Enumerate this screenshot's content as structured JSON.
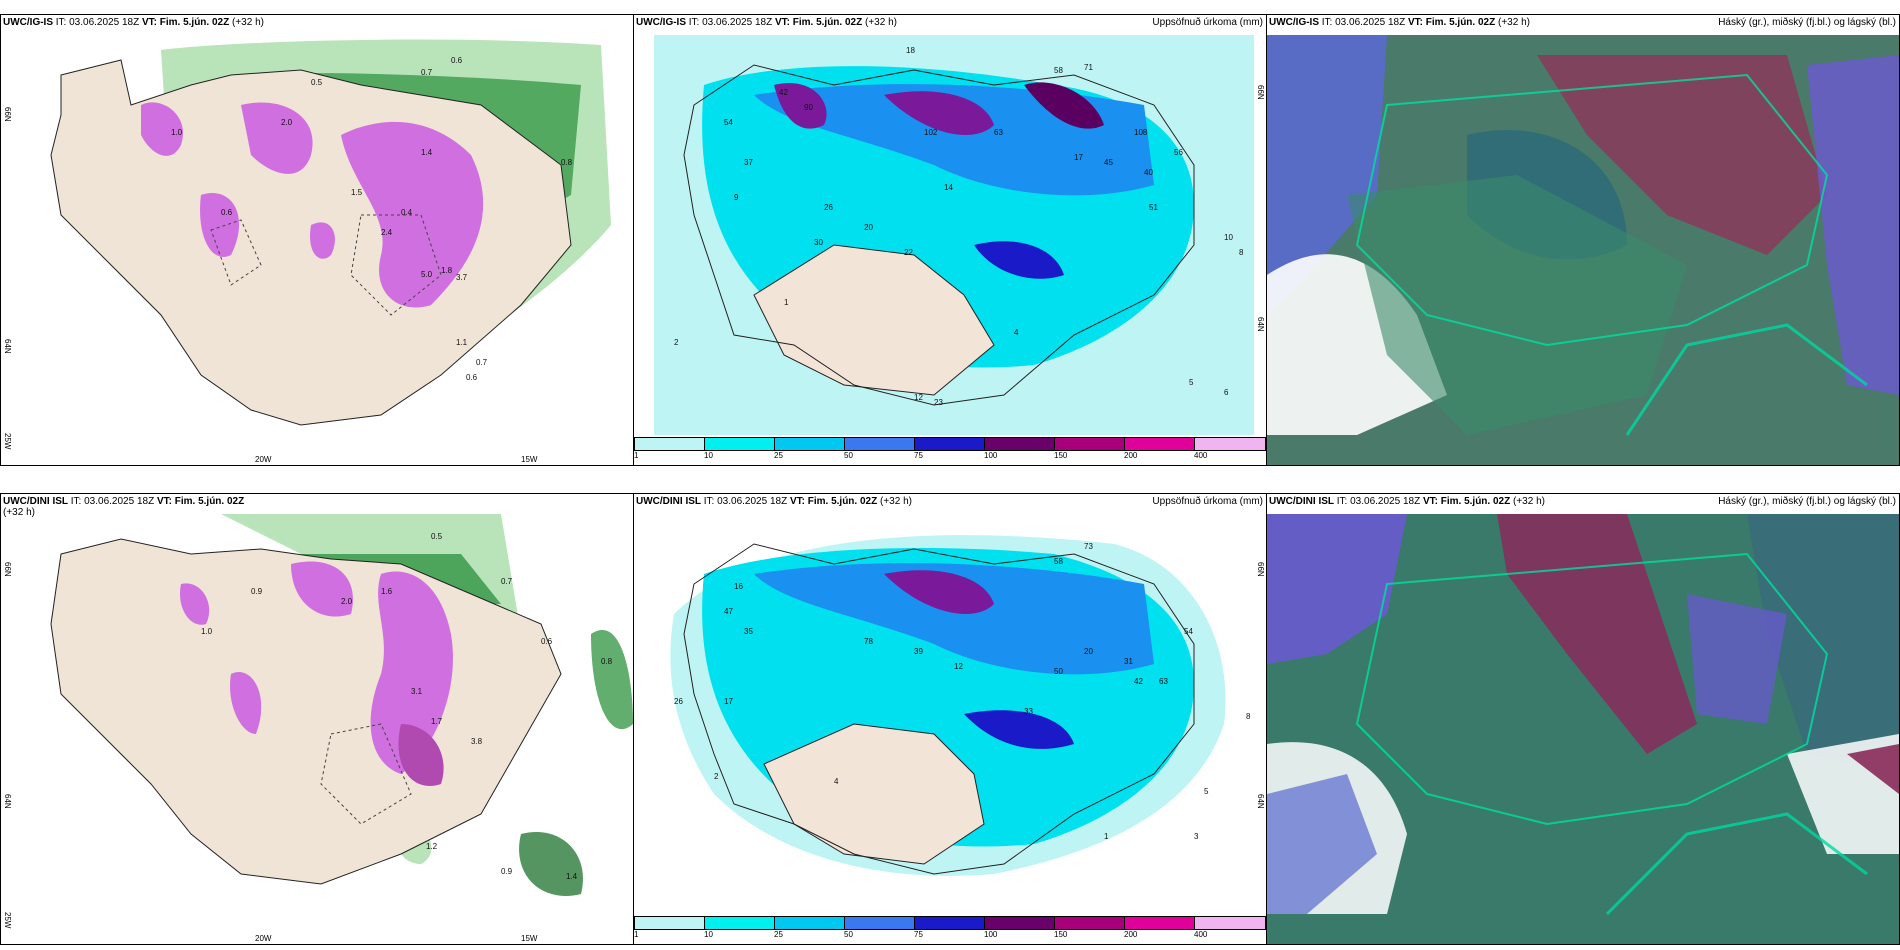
{
  "rows": [
    {
      "id": "ig",
      "left_title": {
        "model": "UWC/IG-IS",
        "it": "IT: 03.06.2025 18Z",
        "vt_label": "VT:",
        "vt_value": "Fim. 5.jún. 02Z",
        "lead": "(+32 h)"
      },
      "mid_title": {
        "model": "UWC/IG-IS",
        "it": "IT: 03.06.2025 18Z",
        "vt_label": "VT:",
        "vt_value": "Fim. 5.jún. 02Z",
        "lead": "(+32 h)",
        "right": "Uppsöfnuð úrkoma (mm)"
      },
      "right_title": {
        "model": "UWC/IG-IS",
        "it": "IT: 03.06.2025 18Z",
        "vt_label": "VT:",
        "vt_value": "Fim. 5.jún. 02Z",
        "lead": "(+32 h)",
        "right": "Háský (gr.), miðský (fj.bl.) og lágský (bl.)"
      },
      "precip_values": [
        "0.7",
        "0.6",
        "0.5",
        "0.8",
        "1.0",
        "2.0",
        "1.4",
        "0.4",
        "1.5",
        "2.4",
        "3.7",
        "5.0",
        "1.8",
        "0.6",
        "1.1",
        "0.7",
        "0.6"
      ],
      "acc_values": [
        "18",
        "58",
        "71",
        "42",
        "90",
        "102",
        "63",
        "37",
        "54",
        "108",
        "45",
        "40",
        "17",
        "14",
        "51",
        "56",
        "26",
        "30",
        "20",
        "22",
        "1",
        "2",
        "4",
        "5",
        "6",
        "8",
        "10",
        "12",
        "23",
        "9"
      ]
    },
    {
      "id": "dini",
      "left_title": {
        "model": "UWC/DINI ISL",
        "it": "IT: 03.06.2025 18Z",
        "vt_label": "VT:",
        "vt_value": "Fim. 5.jún. 02Z",
        "lead": "(+32 h)"
      },
      "mid_title": {
        "model": "UWC/DINI ISL",
        "it": "IT: 03.06.2025 18Z",
        "vt_label": "VT:",
        "vt_value": "Fim. 5.jún. 02Z",
        "lead": "(+32 h)",
        "right": "Uppsöfnuð úrkoma (mm)"
      },
      "right_title": {
        "model": "UWC/DINI ISL",
        "it": "IT: 03.06.2025 18Z",
        "vt_label": "VT:",
        "vt_value": "Fim. 5.jún. 02Z",
        "lead": "(+32 h)",
        "right": "Háský (gr.), miðský (fj.bl.) og lágský (bl.)"
      },
      "precip_values": [
        "0.5",
        "0.7",
        "0.9",
        "1.6",
        "2.0",
        "3.1",
        "1.7",
        "3.8",
        "0.8",
        "0.6",
        "1.2",
        "0.9",
        "1.4",
        "1.0"
      ],
      "acc_values": [
        "73",
        "58",
        "16",
        "47",
        "35",
        "78",
        "39",
        "42",
        "50",
        "20",
        "31",
        "63",
        "26",
        "17",
        "12",
        "54",
        "33",
        "2",
        "4",
        "3",
        "5",
        "8",
        "1"
      ]
    }
  ],
  "axis": {
    "lat_66": "66N",
    "lat_64": "64N",
    "lon_25": "25W",
    "lon_20": "20W",
    "lon_15": "15W"
  },
  "colorbar": {
    "labels": [
      "1",
      "10",
      "25",
      "50",
      "75",
      "100",
      "150",
      "200",
      "400"
    ],
    "colors": [
      "#bff4f4",
      "#00f0f0",
      "#00c8f0",
      "#3a78f0",
      "#1a1ac8",
      "#6a006a",
      "#a8007a",
      "#e0009a",
      "#f0b4f0"
    ]
  }
}
